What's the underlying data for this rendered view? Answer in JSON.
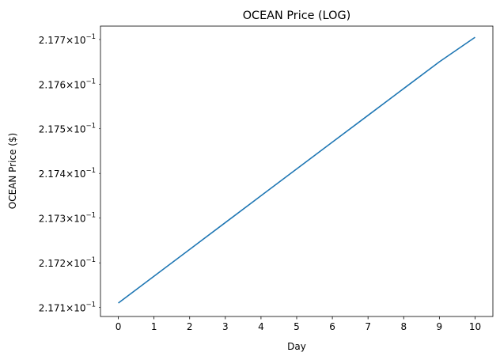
{
  "chart_data": {
    "type": "line",
    "title": "OCEAN Price (LOG)",
    "xlabel": "Day",
    "ylabel": "OCEAN Price ($)",
    "y_scale": "log",
    "grid": false,
    "legend": "none",
    "x": [
      0,
      1,
      2,
      3,
      4,
      5,
      6,
      7,
      8,
      9,
      10
    ],
    "series": [
      {
        "color": "#1f77b4",
        "values": [
          0.21711,
          0.21717,
          0.21723,
          0.21729,
          0.21735,
          0.21741,
          0.21747,
          0.21753,
          0.21759,
          0.21765,
          0.217705
        ]
      }
    ],
    "xlim": [
      -0.5,
      10.5
    ],
    "ylim": [
      0.21708,
      0.21773
    ],
    "x_ticks": [
      "0",
      "1",
      "2",
      "3",
      "4",
      "5",
      "6",
      "7",
      "8",
      "9",
      "10"
    ],
    "y_ticks": [
      {
        "value": 0.2171,
        "mantissa": "2.171",
        "times": "×",
        "base": "10",
        "exponent": "−1"
      },
      {
        "value": 0.2172,
        "mantissa": "2.172",
        "times": "×",
        "base": "10",
        "exponent": "−1"
      },
      {
        "value": 0.2173,
        "mantissa": "2.173",
        "times": "×",
        "base": "10",
        "exponent": "−1"
      },
      {
        "value": 0.2174,
        "mantissa": "2.174",
        "times": "×",
        "base": "10",
        "exponent": "−1"
      },
      {
        "value": 0.2175,
        "mantissa": "2.175",
        "times": "×",
        "base": "10",
        "exponent": "−1"
      },
      {
        "value": 0.2176,
        "mantissa": "2.176",
        "times": "×",
        "base": "10",
        "exponent": "−1"
      },
      {
        "value": 0.2177,
        "mantissa": "2.177",
        "times": "×",
        "base": "10",
        "exponent": "−1"
      }
    ]
  }
}
